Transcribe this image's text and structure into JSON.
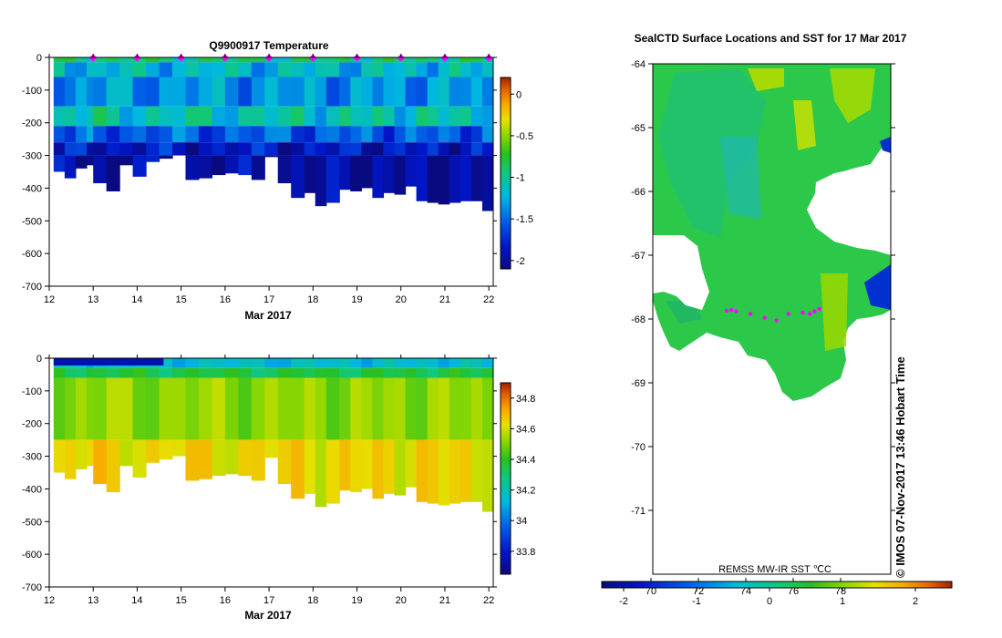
{
  "chart_data": [
    {
      "id": "temperature",
      "type": "heatmap",
      "title": "Q9900917  Temperature",
      "xlabel": "Mar 2017",
      "ylabel": "",
      "x_ticks": [
        "12",
        "13",
        "14",
        "15",
        "16",
        "17",
        "18",
        "19",
        "20",
        "21",
        "22"
      ],
      "y_ticks": [
        "0",
        "-100",
        "-200",
        "-300",
        "-400",
        "-500",
        "-600",
        "-700"
      ],
      "xlim": [
        12,
        22.1
      ],
      "ylim": [
        -700,
        0
      ],
      "colorbar": {
        "range": [
          -2.1,
          0.2
        ],
        "ticks": [
          "0",
          "-0.5",
          "-1",
          "-1.5",
          "-2"
        ],
        "tick_values": [
          0,
          -0.5,
          -1,
          -1.5,
          -2
        ]
      },
      "profile_markers_day": [
        13,
        14,
        15,
        16,
        17,
        18,
        19,
        20,
        21,
        22
      ],
      "profiles": [
        {
          "day": 12.1,
          "max_depth": 350
        },
        {
          "day": 12.35,
          "max_depth": 370
        },
        {
          "day": 12.6,
          "max_depth": 340
        },
        {
          "day": 12.85,
          "max_depth": 330
        },
        {
          "day": 13.0,
          "max_depth": 385
        },
        {
          "day": 13.3,
          "max_depth": 410
        },
        {
          "day": 13.6,
          "max_depth": 330
        },
        {
          "day": 13.9,
          "max_depth": 365
        },
        {
          "day": 14.2,
          "max_depth": 320
        },
        {
          "day": 14.5,
          "max_depth": 310
        },
        {
          "day": 14.8,
          "max_depth": 300
        },
        {
          "day": 15.1,
          "max_depth": 375
        },
        {
          "day": 15.4,
          "max_depth": 370
        },
        {
          "day": 15.7,
          "max_depth": 360
        },
        {
          "day": 16.0,
          "max_depth": 355
        },
        {
          "day": 16.3,
          "max_depth": 360
        },
        {
          "day": 16.6,
          "max_depth": 375
        },
        {
          "day": 16.9,
          "max_depth": 305
        },
        {
          "day": 17.2,
          "max_depth": 385
        },
        {
          "day": 17.5,
          "max_depth": 430
        },
        {
          "day": 17.8,
          "max_depth": 415
        },
        {
          "day": 18.05,
          "max_depth": 455
        },
        {
          "day": 18.3,
          "max_depth": 445
        },
        {
          "day": 18.6,
          "max_depth": 405
        },
        {
          "day": 18.85,
          "max_depth": 410
        },
        {
          "day": 19.1,
          "max_depth": 400
        },
        {
          "day": 19.35,
          "max_depth": 430
        },
        {
          "day": 19.6,
          "max_depth": 415
        },
        {
          "day": 19.85,
          "max_depth": 420
        },
        {
          "day": 20.1,
          "max_depth": 395
        },
        {
          "day": 20.35,
          "max_depth": 440
        },
        {
          "day": 20.6,
          "max_depth": 445
        },
        {
          "day": 20.85,
          "max_depth": 450
        },
        {
          "day": 21.1,
          "max_depth": 445
        },
        {
          "day": 21.35,
          "max_depth": 440
        },
        {
          "day": 21.6,
          "max_depth": 440
        },
        {
          "day": 21.85,
          "max_depth": 470
        }
      ],
      "layers": [
        {
          "top": 0,
          "bottom": 15,
          "value": -0.95
        },
        {
          "top": 15,
          "bottom": 60,
          "value": -1.2
        },
        {
          "top": 60,
          "bottom": 150,
          "value": -1.35
        },
        {
          "top": 150,
          "bottom": 210,
          "value": -1.1
        },
        {
          "top": 210,
          "bottom": 260,
          "value": -1.55
        },
        {
          "top": 260,
          "bottom": 300,
          "value": -1.85
        },
        {
          "top": 300,
          "bottom": 500,
          "value": -2.0
        }
      ]
    },
    {
      "id": "salinity",
      "type": "heatmap",
      "title": "",
      "xlabel": "Mar 2017",
      "ylabel": "",
      "x_ticks": [
        "12",
        "13",
        "14",
        "15",
        "16",
        "17",
        "18",
        "19",
        "20",
        "21",
        "22"
      ],
      "y_ticks": [
        "0",
        "-100",
        "-200",
        "-300",
        "-400",
        "-500",
        "-600",
        "-700"
      ],
      "xlim": [
        12,
        22.1
      ],
      "ylim": [
        -700,
        0
      ],
      "colorbar": {
        "range": [
          33.65,
          34.9
        ],
        "ticks": [
          "34.8",
          "34.6",
          "34.4",
          "34.2",
          "34",
          "33.8"
        ],
        "tick_values": [
          34.8,
          34.6,
          34.4,
          34.2,
          34.0,
          33.8
        ]
      },
      "layers": [
        {
          "top": 0,
          "bottom": 30,
          "value": 34.15
        },
        {
          "top": 30,
          "bottom": 60,
          "value": 34.35
        },
        {
          "top": 60,
          "bottom": 250,
          "value": 34.52
        },
        {
          "top": 250,
          "bottom": 500,
          "value": 34.64
        }
      ]
    },
    {
      "id": "sst-map",
      "type": "heatmap",
      "title": "SealCTD Surface Locations and SST for 17 Mar 2017",
      "ylabel": "",
      "y_ticks": [
        "-64",
        "-65",
        "-66",
        "-67",
        "-68",
        "-69",
        "-70",
        "-71"
      ],
      "ylim": [
        -72,
        -64
      ],
      "colorbar_label": "REMSS MW-IR SST ℃C",
      "colorbar": {
        "range": [
          -2.3,
          2.5
        ],
        "ticks": [
          "-2",
          "-1",
          "0",
          "1",
          "2"
        ],
        "tick_values": [
          -2,
          -1,
          0,
          1,
          2
        ]
      },
      "colorbar_overlay_ticks": [
        "70",
        "72",
        "74",
        "76",
        "78"
      ],
      "track_points": [
        {
          "lon": 0.31,
          "lat": -67.87
        },
        {
          "lon": 0.33,
          "lat": -67.86
        },
        {
          "lon": 0.35,
          "lat": -67.88
        },
        {
          "lon": 0.41,
          "lat": -67.92
        },
        {
          "lon": 0.47,
          "lat": -67.98
        },
        {
          "lon": 0.52,
          "lat": -68.02
        },
        {
          "lon": 0.57,
          "lat": -67.92
        },
        {
          "lon": 0.63,
          "lat": -67.9
        },
        {
          "lon": 0.66,
          "lat": -67.92
        },
        {
          "lon": 0.68,
          "lat": -67.88
        },
        {
          "lon": 0.7,
          "lat": -67.84
        }
      ],
      "watermark": "© IMOS 07-Nov-2017 13:46 Hobart Time"
    }
  ],
  "colors": {
    "marker": "#ff00ff",
    "land": "#ffffff"
  }
}
